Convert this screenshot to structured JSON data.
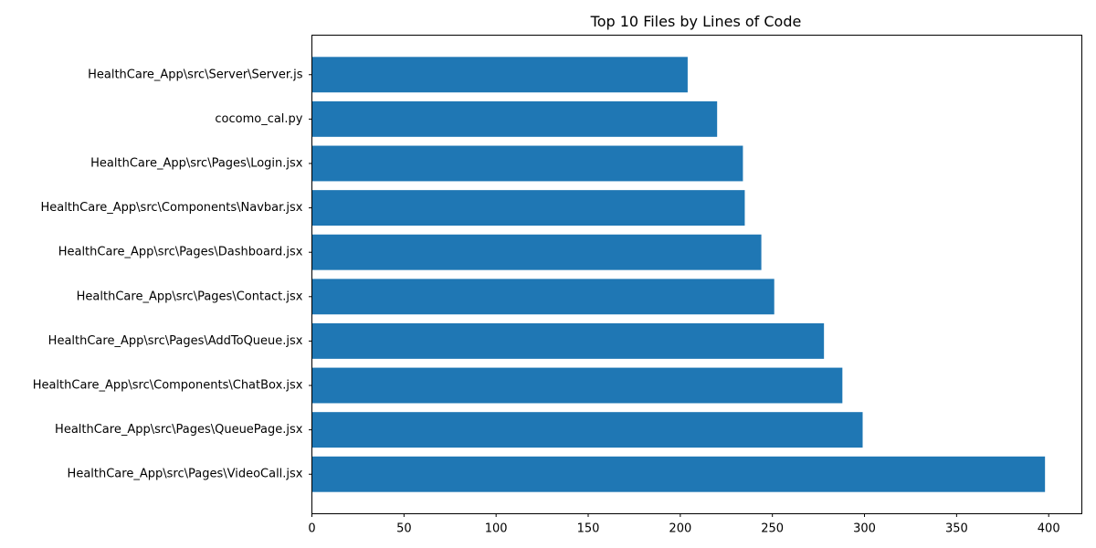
{
  "chart_data": {
    "type": "bar",
    "orientation": "horizontal",
    "title": "Top 10 Files by Lines of Code",
    "xlabel": "",
    "ylabel": "",
    "categories": [
      "HealthCare_App\\src\\Pages\\VideoCall.jsx",
      "HealthCare_App\\src\\Pages\\QueuePage.jsx",
      "HealthCare_App\\src\\Components\\ChatBox.jsx",
      "HealthCare_App\\src\\Pages\\AddToQueue.jsx",
      "HealthCare_App\\src\\Pages\\Contact.jsx",
      "HealthCare_App\\src\\Pages\\Dashboard.jsx",
      "HealthCare_App\\src\\Components\\Navbar.jsx",
      "HealthCare_App\\src\\Pages\\Login.jsx",
      "cocomo_cal.py",
      "HealthCare_App\\src\\Server\\Server.js"
    ],
    "values": [
      398,
      299,
      288,
      278,
      251,
      244,
      235,
      234,
      220,
      204
    ],
    "xlim": [
      0,
      418
    ],
    "xticks": [
      0,
      50,
      100,
      150,
      200,
      250,
      300,
      350,
      400
    ],
    "bar_color": "#1f77b4",
    "grid": false,
    "legend": "none"
  }
}
